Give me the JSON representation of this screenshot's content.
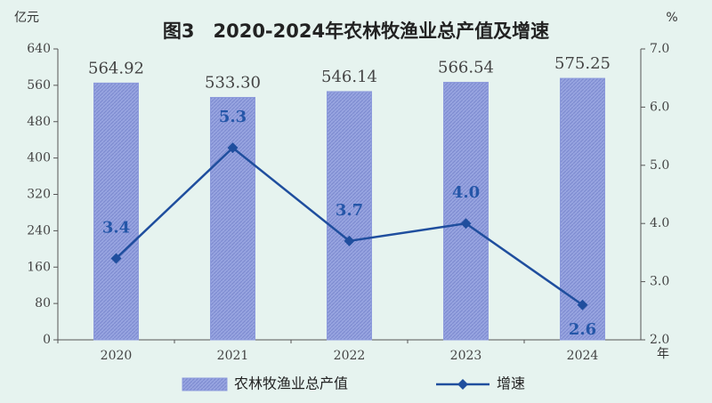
{
  "chart_data": {
    "type": "bar_line",
    "title": "图3　2020-2024年农林牧渔业总产值及增速",
    "y_label": "亿元",
    "y2_label": "%",
    "x_label": "年",
    "categories": [
      "2020",
      "2021",
      "2022",
      "2023",
      "2024"
    ],
    "series": [
      {
        "name": "农林牧渔业总产值",
        "type": "bar",
        "color": "#8d9bdc",
        "values": [
          564.92,
          533.3,
          546.14,
          566.54,
          575.25
        ],
        "value_labels": [
          "564.92",
          "533.30",
          "546.14",
          "566.54",
          "575.25"
        ]
      },
      {
        "name": "增速",
        "type": "line",
        "axis": "y2",
        "color": "#1f4e9e",
        "values": [
          3.4,
          5.3,
          3.7,
          4.0,
          2.6
        ],
        "value_labels": [
          "3.4",
          "5.3",
          "3.7",
          "4.0",
          "2.6"
        ]
      }
    ],
    "ylim": [
      0,
      640
    ],
    "yticks": [
      0,
      80,
      160,
      240,
      320,
      400,
      480,
      560,
      640
    ],
    "y2lim": [
      2,
      7
    ],
    "y2ticks": [
      {
        "value": 2,
        "label": "2.0"
      },
      {
        "value": 3,
        "label": "3.0"
      },
      {
        "value": 4,
        "label": "4.0"
      },
      {
        "value": 5,
        "label": "5.0"
      },
      {
        "value": 6,
        "label": "6.0"
      },
      {
        "value": 7,
        "label": "7.0"
      }
    ],
    "grid": false
  }
}
